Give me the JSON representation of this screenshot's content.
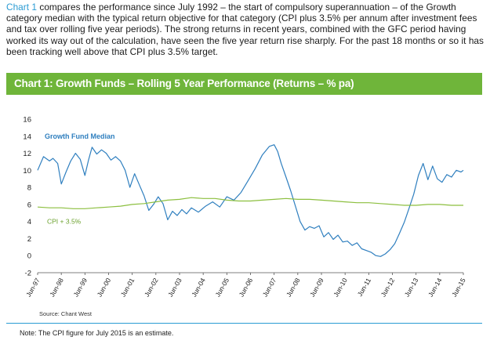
{
  "intro": {
    "lead": "Chart 1",
    "text": " compares the performance since July 1992 – the start of compulsory superannuation – of the Growth category median with the typical return objective for that category (CPI plus 3.5% per annum after investment fees and tax over rolling five year periods).  The strong returns in recent years, combined with the GFC period having worked its way out of the calculation, have seen the five year return rise sharply.  For the past 18 months or so it has been tracking well above that CPI plus 3.5% target."
  },
  "banner": {
    "title": "Chart 1:  Growth Funds – Rolling 5 Year Performance (Returns – % pa)"
  },
  "source": "Source: Chant West",
  "note": "Note:  The CPI figure for July 2015 is an estimate.",
  "colors": {
    "growth": "#2f7fbf",
    "cpi": "#8cbf3f",
    "banner": "#6fb53a",
    "accent": "#2a9bd3"
  },
  "chart_data": {
    "type": "line",
    "title": "Chart 1:  Growth Funds – Rolling 5 Year Performance (Returns – % pa)",
    "xlabel": "",
    "ylabel": "",
    "ylim": [
      -2,
      16
    ],
    "yticks": [
      -2,
      0,
      2,
      4,
      6,
      8,
      10,
      12,
      14,
      16
    ],
    "xlim": [
      1997.5,
      2015.5
    ],
    "xticks": [
      {
        "label": "Jun-97",
        "x": 1997.5
      },
      {
        "label": "Jun-98",
        "x": 1998.5
      },
      {
        "label": "Jun-99",
        "x": 1999.5
      },
      {
        "label": "Jun-00",
        "x": 2000.5
      },
      {
        "label": "Jun-01",
        "x": 2001.5
      },
      {
        "label": "Jun-02",
        "x": 2002.5
      },
      {
        "label": "Jun-03",
        "x": 2003.5
      },
      {
        "label": "Jun-04",
        "x": 2004.5
      },
      {
        "label": "Jun-05",
        "x": 2005.5
      },
      {
        "label": "Jun-06",
        "x": 2006.5
      },
      {
        "label": "Jun-07",
        "x": 2007.5
      },
      {
        "label": "Jun-08",
        "x": 2008.5
      },
      {
        "label": "Jun-09",
        "x": 2009.5
      },
      {
        "label": "Jun-10",
        "x": 2010.5
      },
      {
        "label": "Jun-11",
        "x": 2011.5
      },
      {
        "label": "Jun-12",
        "x": 2012.5
      },
      {
        "label": "Jun-13",
        "x": 2013.5
      },
      {
        "label": "Jun-14",
        "x": 2014.5
      },
      {
        "label": "Jun-15",
        "x": 2015.5
      }
    ],
    "series": [
      {
        "name": "Growth Fund Median",
        "x": [
          1997.5,
          1997.75,
          1998.0,
          1998.15,
          1998.35,
          1998.5,
          1998.7,
          1998.9,
          1999.1,
          1999.3,
          1999.5,
          1999.65,
          1999.8,
          2000.0,
          2000.2,
          2000.4,
          2000.6,
          2000.8,
          2001.0,
          2001.2,
          2001.4,
          2001.6,
          2001.8,
          2002.0,
          2002.2,
          2002.4,
          2002.6,
          2002.8,
          2003.0,
          2003.2,
          2003.4,
          2003.6,
          2003.8,
          2004.0,
          2004.3,
          2004.6,
          2004.9,
          2005.2,
          2005.5,
          2005.8,
          2006.1,
          2006.4,
          2006.7,
          2007.0,
          2007.3,
          2007.5,
          2007.65,
          2007.8,
          2008.0,
          2008.2,
          2008.4,
          2008.6,
          2008.8,
          2009.0,
          2009.2,
          2009.4,
          2009.6,
          2009.8,
          2010.0,
          2010.2,
          2010.4,
          2010.6,
          2010.8,
          2011.0,
          2011.2,
          2011.4,
          2011.6,
          2011.8,
          2012.0,
          2012.2,
          2012.4,
          2012.6,
          2012.8,
          2013.0,
          2013.2,
          2013.4,
          2013.6,
          2013.8,
          2014.0,
          2014.2,
          2014.4,
          2014.6,
          2014.8,
          2015.0,
          2015.2,
          2015.4,
          2015.5
        ],
        "values": [
          10.0,
          11.6,
          11.1,
          11.4,
          10.8,
          8.4,
          9.8,
          11.1,
          12.0,
          11.3,
          9.4,
          11.2,
          12.7,
          11.9,
          12.4,
          12.0,
          11.2,
          11.6,
          11.1,
          10.0,
          8.0,
          9.6,
          8.3,
          7.0,
          5.3,
          6.0,
          6.9,
          6.1,
          4.2,
          5.2,
          4.7,
          5.4,
          4.9,
          5.6,
          5.1,
          5.8,
          6.3,
          5.7,
          6.9,
          6.5,
          7.4,
          8.8,
          10.2,
          11.8,
          12.8,
          13.0,
          12.2,
          10.8,
          9.2,
          7.6,
          5.8,
          4.0,
          3.0,
          3.4,
          3.2,
          3.5,
          2.2,
          2.7,
          1.9,
          2.4,
          1.6,
          1.7,
          1.2,
          1.5,
          0.8,
          0.6,
          0.4,
          0.0,
          -0.1,
          0.2,
          0.7,
          1.4,
          2.6,
          3.9,
          5.5,
          7.2,
          9.4,
          10.8,
          8.9,
          10.5,
          9.0,
          8.6,
          9.5,
          9.2,
          10.0,
          9.8,
          10.0
        ]
      },
      {
        "name": "CPI + 3.5%",
        "x": [
          1997.5,
          1998.0,
          1998.5,
          1999.0,
          1999.5,
          2000.0,
          2000.5,
          2001.0,
          2001.5,
          2002.0,
          2002.5,
          2003.0,
          2003.5,
          2004.0,
          2004.5,
          2005.0,
          2005.5,
          2006.0,
          2006.5,
          2007.0,
          2007.5,
          2008.0,
          2008.5,
          2009.0,
          2009.5,
          2010.0,
          2010.5,
          2011.0,
          2011.5,
          2012.0,
          2012.5,
          2013.0,
          2013.5,
          2014.0,
          2014.5,
          2015.0,
          2015.5
        ],
        "values": [
          5.7,
          5.6,
          5.6,
          5.5,
          5.5,
          5.6,
          5.7,
          5.8,
          6.0,
          6.1,
          6.3,
          6.5,
          6.6,
          6.8,
          6.7,
          6.7,
          6.5,
          6.4,
          6.4,
          6.5,
          6.6,
          6.7,
          6.6,
          6.6,
          6.5,
          6.4,
          6.3,
          6.2,
          6.2,
          6.1,
          6.0,
          5.9,
          5.9,
          6.0,
          6.0,
          5.9,
          5.9
        ]
      }
    ]
  }
}
